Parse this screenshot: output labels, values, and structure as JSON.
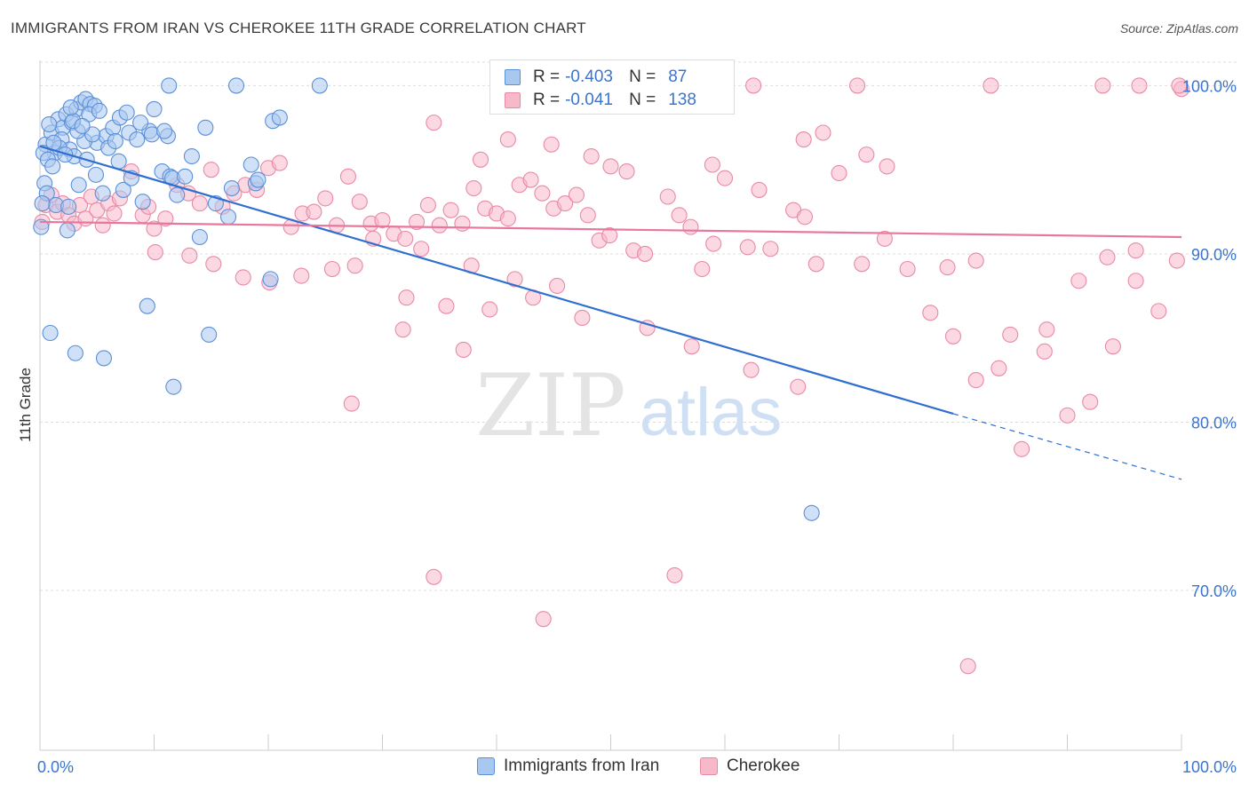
{
  "header": {
    "title": "IMMIGRANTS FROM IRAN VS CHEROKEE 11TH GRADE CORRELATION CHART",
    "source": "Source: ZipAtlas.com"
  },
  "watermark": {
    "zip": "ZIP",
    "atlas": "atlas"
  },
  "stats_legend": [
    {
      "r_label": "R =",
      "r_value": "-0.403",
      "n_label": "N =",
      "n_value": "87"
    },
    {
      "r_label": "R =",
      "r_value": "-0.041",
      "n_label": "N =",
      "n_value": "138"
    }
  ],
  "colors": {
    "blue_fill": "#a9c8f0",
    "blue_stroke": "#5b8fd8",
    "blue_line": "#2f6fcf",
    "pink_fill": "#f7b8ca",
    "pink_stroke": "#e88aa6",
    "pink_line": "#e8779d",
    "axis_text": "#3a74d0",
    "grid": "#dddddd"
  },
  "chart_data": {
    "type": "scatter",
    "title": "IMMIGRANTS FROM IRAN VS CHEROKEE 11TH GRADE CORRELATION CHART",
    "xlabel": "",
    "ylabel": "11th Grade",
    "xlim": [
      0,
      100
    ],
    "ylim": [
      60.5,
      101.5
    ],
    "x_tick_labels": [
      "0.0%",
      "100.0%"
    ],
    "y_ticks": [
      70,
      80,
      90,
      100
    ],
    "y_tick_labels": [
      "70.0%",
      "80.0%",
      "90.0%",
      "100.0%"
    ],
    "grid": true,
    "legend_position": "bottom",
    "series": [
      {
        "name": "Immigrants from Iran",
        "r": -0.403,
        "n": 87,
        "trend": {
          "x0": 0,
          "y0": 96.4,
          "x1": 80,
          "y1": 80.5,
          "dashed_to_x": 100,
          "dashed_to_y": 76.6
        },
        "points": [
          [
            0.5,
            96.5
          ],
          [
            1,
            97.2
          ],
          [
            1.3,
            96
          ],
          [
            1.6,
            98
          ],
          [
            2,
            97.5
          ],
          [
            2.3,
            98.3
          ],
          [
            2.8,
            97.8
          ],
          [
            3.2,
            98.6
          ],
          [
            3.6,
            99
          ],
          [
            4,
            99.2
          ],
          [
            4.4,
            98.9
          ],
          [
            4.8,
            98.8
          ],
          [
            5,
            96.6
          ],
          [
            5.8,
            97
          ],
          [
            6.4,
            97.5
          ],
          [
            7,
            98.1
          ],
          [
            7.8,
            97.2
          ],
          [
            8.5,
            96.8
          ],
          [
            9.6,
            97.3
          ],
          [
            10,
            98.6
          ],
          [
            0.3,
            96
          ],
          [
            0.7,
            95.6
          ],
          [
            1.1,
            95.2
          ],
          [
            1.9,
            96.8
          ],
          [
            2.6,
            96.2
          ],
          [
            3,
            95.8
          ],
          [
            3.9,
            96.7
          ],
          [
            4.6,
            97.1
          ],
          [
            0.4,
            94.2
          ],
          [
            0.6,
            93.6
          ],
          [
            1.4,
            92.9
          ],
          [
            0.2,
            93
          ],
          [
            0.1,
            91.6
          ],
          [
            2.5,
            92.8
          ],
          [
            3.4,
            94.1
          ],
          [
            4.9,
            94.7
          ],
          [
            5.5,
            93.6
          ],
          [
            6.9,
            95.5
          ],
          [
            7.3,
            93.8
          ],
          [
            8,
            94.5
          ],
          [
            9,
            93.1
          ],
          [
            10.7,
            94.9
          ],
          [
            11.4,
            94.6
          ],
          [
            12,
            93.5
          ],
          [
            13.3,
            95.8
          ],
          [
            14.5,
            97.5
          ],
          [
            15.4,
            93
          ],
          [
            16.5,
            92.2
          ],
          [
            18.9,
            94.2
          ],
          [
            20.4,
            97.9
          ],
          [
            21,
            98.1
          ],
          [
            24.5,
            100
          ],
          [
            17.2,
            100
          ],
          [
            11.3,
            100
          ],
          [
            11.2,
            97
          ],
          [
            11.6,
            94.5
          ],
          [
            2.4,
            91.4
          ],
          [
            0.9,
            85.3
          ],
          [
            3.1,
            84.1
          ],
          [
            5.6,
            83.8
          ],
          [
            9.4,
            86.9
          ],
          [
            11.7,
            82.1
          ],
          [
            14.8,
            85.2
          ],
          [
            20.2,
            88.5
          ],
          [
            14,
            91
          ],
          [
            67.6,
            74.6
          ],
          [
            1.7,
            96.3
          ],
          [
            2.2,
            95.9
          ],
          [
            3.3,
            97.3
          ],
          [
            4.1,
            95.6
          ],
          [
            6,
            96.3
          ],
          [
            6.6,
            96.7
          ],
          [
            7.6,
            98.4
          ],
          [
            8.8,
            97.8
          ],
          [
            9.8,
            97.1
          ],
          [
            10.9,
            97.3
          ],
          [
            12.7,
            94.6
          ],
          [
            16.8,
            93.9
          ],
          [
            18.5,
            95.3
          ],
          [
            19.1,
            94.4
          ],
          [
            2.9,
            97.9
          ],
          [
            1.2,
            96.6
          ],
          [
            0.8,
            97.7
          ],
          [
            4.3,
            98.3
          ],
          [
            5.2,
            98.5
          ],
          [
            3.7,
            97.6
          ],
          [
            2.7,
            98.7
          ]
        ]
      },
      {
        "name": "Cherokee",
        "r": -0.041,
        "n": 138,
        "trend": {
          "x0": 0,
          "y0": 91.9,
          "x1": 100,
          "y1": 91
        },
        "points": [
          [
            0.2,
            91.9
          ],
          [
            0.5,
            92.9
          ],
          [
            1,
            93.5
          ],
          [
            1.5,
            92.5
          ],
          [
            2,
            93
          ],
          [
            2.5,
            92.3
          ],
          [
            3,
            91.8
          ],
          [
            3.5,
            92.9
          ],
          [
            4,
            92.1
          ],
          [
            4.5,
            93.4
          ],
          [
            5,
            92.6
          ],
          [
            5.5,
            91.7
          ],
          [
            6,
            93
          ],
          [
            6.5,
            92.4
          ],
          [
            7,
            93.3
          ],
          [
            8,
            94.9
          ],
          [
            9,
            92.3
          ],
          [
            9.5,
            92.8
          ],
          [
            10,
            91.5
          ],
          [
            11,
            92.1
          ],
          [
            12,
            94.1
          ],
          [
            13,
            93.6
          ],
          [
            14,
            93
          ],
          [
            15,
            95
          ],
          [
            16,
            92.8
          ],
          [
            17,
            93.6
          ],
          [
            18,
            94.1
          ],
          [
            19,
            93.8
          ],
          [
            20,
            95.1
          ],
          [
            21,
            95.4
          ],
          [
            22,
            91.6
          ],
          [
            23,
            92.4
          ],
          [
            24,
            92.5
          ],
          [
            25,
            93.3
          ],
          [
            26,
            91.7
          ],
          [
            27,
            94.6
          ],
          [
            28,
            93.1
          ],
          [
            29,
            91.8
          ],
          [
            30,
            92
          ],
          [
            31,
            91.2
          ],
          [
            32,
            90.9
          ],
          [
            33,
            91.9
          ],
          [
            34,
            92.9
          ],
          [
            35,
            91.7
          ],
          [
            36,
            92.6
          ],
          [
            37,
            91.8
          ],
          [
            38,
            93.9
          ],
          [
            39,
            92.7
          ],
          [
            40,
            92.4
          ],
          [
            41,
            92.1
          ],
          [
            42,
            94.1
          ],
          [
            43,
            94.4
          ],
          [
            44,
            93.6
          ],
          [
            45,
            92.7
          ],
          [
            46,
            93
          ],
          [
            47,
            93.5
          ],
          [
            48,
            92.3
          ],
          [
            49,
            90.8
          ],
          [
            50,
            95.2
          ],
          [
            52,
            90.2
          ],
          [
            53,
            90
          ],
          [
            55,
            93.4
          ],
          [
            56,
            92.3
          ],
          [
            57,
            91.6
          ],
          [
            58,
            89.1
          ],
          [
            59,
            90.6
          ],
          [
            60,
            94.5
          ],
          [
            62,
            90.4
          ],
          [
            63,
            93.8
          ],
          [
            64,
            90.3
          ],
          [
            66,
            92.6
          ],
          [
            67,
            92.2
          ],
          [
            68,
            89.4
          ],
          [
            70,
            94.8
          ],
          [
            72,
            89.4
          ],
          [
            74,
            90.9
          ],
          [
            76,
            89.1
          ],
          [
            78,
            86.5
          ],
          [
            80,
            85.1
          ],
          [
            82,
            82.5
          ],
          [
            84,
            83.2
          ],
          [
            86,
            78.4
          ],
          [
            88,
            84.2
          ],
          [
            90,
            80.4
          ],
          [
            92,
            81.2
          ],
          [
            94,
            84.5
          ],
          [
            96,
            88.4
          ],
          [
            98,
            86.6
          ],
          [
            100,
            99.8
          ],
          [
            34.5,
            97.8
          ],
          [
            38.6,
            95.6
          ],
          [
            44.8,
            96.5
          ],
          [
            48.3,
            95.8
          ],
          [
            51.4,
            94.9
          ],
          [
            58.9,
            95.3
          ],
          [
            66.9,
            96.8
          ],
          [
            68.6,
            97.2
          ],
          [
            72.4,
            95.9
          ],
          [
            74.2,
            95.2
          ],
          [
            79.5,
            89.2
          ],
          [
            82,
            89.6
          ],
          [
            85,
            85.2
          ],
          [
            88.2,
            85.5
          ],
          [
            91,
            88.4
          ],
          [
            93.5,
            89.8
          ],
          [
            96,
            90.2
          ],
          [
            99.6,
            89.6
          ],
          [
            49.9,
            91.1
          ],
          [
            45.3,
            88.1
          ],
          [
            41.6,
            88.5
          ],
          [
            37.8,
            89.3
          ],
          [
            33.4,
            90.3
          ],
          [
            29.2,
            90.9
          ],
          [
            27.6,
            89.3
          ],
          [
            25.6,
            89.1
          ],
          [
            22.9,
            88.7
          ],
          [
            20.1,
            88.3
          ],
          [
            17.8,
            88.6
          ],
          [
            15.2,
            89.4
          ],
          [
            13.1,
            89.9
          ],
          [
            10.1,
            90.1
          ],
          [
            32.1,
            87.4
          ],
          [
            35.6,
            86.9
          ],
          [
            39.4,
            86.7
          ],
          [
            43.2,
            87.4
          ],
          [
            47.5,
            86.2
          ],
          [
            53.2,
            85.6
          ],
          [
            57.1,
            84.5
          ],
          [
            62.3,
            83.1
          ],
          [
            66.4,
            82.1
          ],
          [
            41,
            96.8
          ],
          [
            27.3,
            81.1
          ],
          [
            31.8,
            85.5
          ],
          [
            37.1,
            84.3
          ],
          [
            55.6,
            70.9
          ],
          [
            44.1,
            68.3
          ],
          [
            34.5,
            70.8
          ],
          [
            81.3,
            65.5
          ],
          [
            71.6,
            100
          ],
          [
            83.3,
            100
          ],
          [
            93.1,
            100
          ],
          [
            96.3,
            100
          ],
          [
            99.8,
            100
          ],
          [
            62.5,
            100
          ],
          [
            60.1,
            100
          ],
          [
            48.4,
            100
          ]
        ]
      }
    ]
  },
  "bottom_legend": [
    {
      "label": "Immigrants from Iran"
    },
    {
      "label": "Cherokee"
    }
  ]
}
